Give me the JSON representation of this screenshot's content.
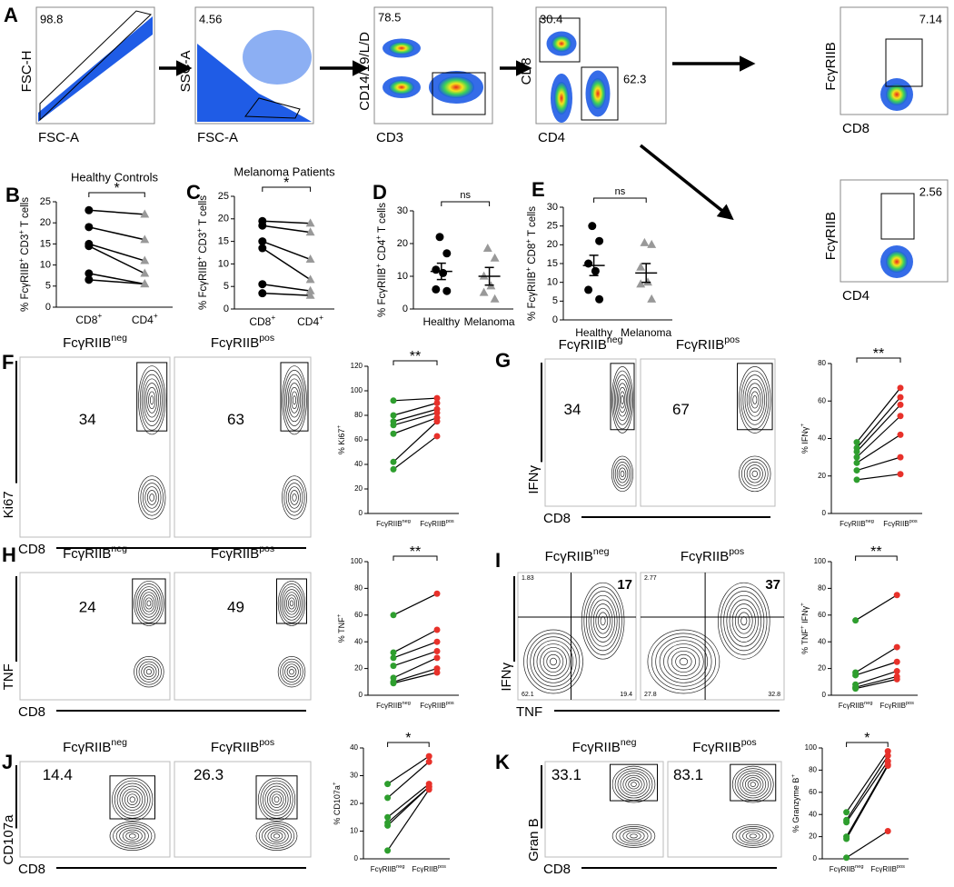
{
  "row_a": {
    "letter": "A",
    "plots": [
      {
        "x_label": "FSC-A",
        "y_label": "FSC-H",
        "gates": [
          "98.8"
        ]
      },
      {
        "x_label": "FSC-A",
        "y_label": "SSC-A",
        "gates": [
          "4.56"
        ]
      },
      {
        "x_label": "CD3",
        "y_label": "CD14/19/L/D",
        "gates": [
          "78.5"
        ]
      },
      {
        "x_label": "CD4",
        "y_label": "CD8",
        "gates": [
          "30.4",
          "62.3"
        ]
      },
      {
        "x_label": "CD8",
        "y_label": "FcγRIIB",
        "gates": [
          "7.14"
        ]
      },
      {
        "x_label": "CD4",
        "y_label": "FcγRIIB",
        "gates": [
          "2.56"
        ]
      }
    ]
  },
  "stain_panels": [
    {
      "letter": "F",
      "y_label": "Ki67",
      "x_label": "CD8",
      "headers": [
        {
          "base": "FcγRIIB",
          "sup": "neg"
        },
        {
          "base": "FcγRIIB",
          "sup": "pos"
        }
      ],
      "gates": [
        [
          "34"
        ],
        [
          "63"
        ]
      ]
    },
    {
      "letter": "G",
      "y_label": "IFNγ",
      "x_label": "CD8",
      "headers": [
        {
          "base": "FcγRIIB",
          "sup": "neg"
        },
        {
          "base": "FcγRIIB",
          "sup": "pos"
        }
      ],
      "gates": [
        [
          "34"
        ],
        [
          "67"
        ]
      ]
    },
    {
      "letter": "H",
      "y_label": "TNF",
      "x_label": "CD8",
      "headers": [
        {
          "base": "FcγRIIB",
          "sup": "neg"
        },
        {
          "base": "FcγRIIB",
          "sup": "pos"
        }
      ],
      "gates": [
        [
          "24"
        ],
        [
          "49"
        ]
      ]
    },
    {
      "letter": "I",
      "y_label": "IFNγ",
      "x_label": "TNF",
      "headers": [
        {
          "base": "FcγRIIB",
          "sup": "neg"
        },
        {
          "base": "FcγRIIB",
          "sup": "pos"
        }
      ],
      "gates": [
        [
          "1.83",
          "17",
          "62.1",
          "19.4"
        ],
        [
          "2.77",
          "37",
          "27.8",
          "32.8"
        ]
      ]
    },
    {
      "letter": "J",
      "y_label": "CD107a",
      "x_label": "CD8",
      "headers": [
        {
          "base": "FcγRIIB",
          "sup": "neg"
        },
        {
          "base": "FcγRIIB",
          "sup": "pos"
        }
      ],
      "gates": [
        [
          "14.4"
        ],
        [
          "26.3"
        ]
      ]
    },
    {
      "letter": "K",
      "y_label": "Gran B",
      "x_label": "CD8",
      "headers": [
        {
          "base": "FcγRIIB",
          "sup": "neg"
        },
        {
          "base": "FcγRIIB",
          "sup": "pos"
        }
      ],
      "gates": [
        [
          "33.1"
        ],
        [
          "83.1"
        ]
      ]
    }
  ],
  "charts": [
    {
      "letter": "B",
      "type": "paired",
      "title": "Healthy Controls",
      "y_label": [
        "% FcγRIIB",
        {
          "sup": "+"
        },
        " CD3",
        {
          "sup": "+"
        },
        " T cells"
      ],
      "categories": [
        {
          "base": "CD8",
          "sup": "+"
        },
        {
          "base": "CD4",
          "sup": "+"
        }
      ],
      "ylim": [
        0,
        25
      ],
      "yticks": [
        0,
        5,
        10,
        15,
        20,
        25
      ],
      "significance": "*",
      "series": [
        {
          "color": "#000000",
          "marker": "circle",
          "values": [
            23,
            19,
            15,
            14.5,
            8,
            6.5
          ]
        },
        {
          "color": "#999999",
          "marker": "triangle",
          "values": [
            22,
            16,
            11,
            8,
            5.5,
            5.5
          ]
        }
      ]
    },
    {
      "letter": "C",
      "type": "paired",
      "title": "Melanoma Patients",
      "y_label": [
        "% FcγRIIB",
        {
          "sup": "+"
        },
        " CD3",
        {
          "sup": "+"
        },
        " T cells"
      ],
      "categories": [
        {
          "base": "CD8",
          "sup": "+"
        },
        {
          "base": "CD4",
          "sup": "+"
        }
      ],
      "ylim": [
        0,
        25
      ],
      "yticks": [
        0,
        5,
        10,
        15,
        20,
        25
      ],
      "significance": "*",
      "series": [
        {
          "color": "#000000",
          "marker": "circle",
          "values": [
            19.5,
            18.5,
            15,
            13.5,
            5.5,
            3.5
          ]
        },
        {
          "color": "#999999",
          "marker": "triangle",
          "values": [
            19,
            17,
            11,
            6.5,
            4,
            3
          ]
        }
      ]
    },
    {
      "letter": "D",
      "type": "dot",
      "y_label": [
        "% FcγRIIB",
        {
          "sup": "+"
        },
        " CD4",
        {
          "sup": "+"
        },
        " T cells"
      ],
      "categories": [
        "Healthy",
        "Melanoma"
      ],
      "ylim": [
        0,
        30
      ],
      "yticks": [
        0,
        10,
        20,
        30
      ],
      "significance": "ns",
      "series": [
        {
          "color": "#000000",
          "marker": "circle",
          "values": [
            22,
            17,
            12,
            11,
            6,
            5.5
          ]
        },
        {
          "color": "#999999",
          "marker": "triangle",
          "values": [
            18.5,
            15.5,
            10,
            7,
            5,
            3
          ]
        }
      ],
      "mean": [
        11.5,
        10
      ],
      "sem": [
        2.5,
        2.7
      ]
    },
    {
      "letter": "E",
      "type": "dot",
      "y_label": [
        "% FcγRIIB",
        {
          "sup": "+"
        },
        " CD8",
        {
          "sup": "+"
        },
        " T cells"
      ],
      "categories": [
        "Healthy",
        "Melanoma"
      ],
      "ylim": [
        0,
        30
      ],
      "yticks": [
        0,
        5,
        10,
        15,
        20,
        25,
        30
      ],
      "significance": "ns",
      "series": [
        {
          "color": "#000000",
          "marker": "circle",
          "values": [
            25,
            21,
            15,
            13,
            8,
            5.5
          ]
        },
        {
          "color": "#999999",
          "marker": "triangle",
          "values": [
            20.5,
            20,
            14,
            10,
            9.5,
            5.5
          ]
        }
      ],
      "mean": [
        14.5,
        12.5
      ],
      "sem": [
        2.7,
        2.5
      ]
    },
    {
      "type": "paired",
      "y_label": [
        "% Ki67",
        {
          "sup": "+"
        }
      ],
      "categories": [
        {
          "base": "FcγRIIB",
          "sup": "neg"
        },
        {
          "base": "FcγRIIB",
          "sup": "pos"
        }
      ],
      "ylim": [
        0,
        120
      ],
      "yticks": [
        0,
        20,
        40,
        60,
        80,
        100,
        120
      ],
      "significance": "**",
      "series": [
        {
          "color": "#2e9e2e",
          "marker": "circle",
          "values": [
            92,
            80,
            75,
            72,
            65,
            42,
            36
          ]
        },
        {
          "color": "#e8312a",
          "marker": "circle",
          "values": [
            94,
            90,
            85,
            82,
            78,
            75,
            63
          ]
        }
      ]
    },
    {
      "type": "paired",
      "y_label": [
        "% IFNγ",
        {
          "sup": "+"
        }
      ],
      "categories": [
        {
          "base": "FcγRIIB",
          "sup": "neg"
        },
        {
          "base": "FcγRIIB",
          "sup": "pos"
        }
      ],
      "ylim": [
        0,
        80
      ],
      "yticks": [
        0,
        20,
        40,
        60,
        80
      ],
      "significance": "**",
      "series": [
        {
          "color": "#2e9e2e",
          "marker": "circle",
          "values": [
            38,
            35,
            33,
            30,
            27,
            23,
            18
          ]
        },
        {
          "color": "#e8312a",
          "marker": "circle",
          "values": [
            67,
            62,
            58,
            52,
            42,
            30,
            21
          ]
        }
      ]
    },
    {
      "type": "paired",
      "y_label": [
        "% TNF",
        {
          "sup": "+"
        }
      ],
      "categories": [
        {
          "base": "FcγRIIB",
          "sup": "neg"
        },
        {
          "base": "FcγRIIB",
          "sup": "pos"
        }
      ],
      "ylim": [
        0,
        100
      ],
      "yticks": [
        0,
        20,
        40,
        60,
        80,
        100
      ],
      "significance": "**",
      "series": [
        {
          "color": "#2e9e2e",
          "marker": "circle",
          "values": [
            60,
            32,
            28,
            22,
            13,
            10,
            9
          ]
        },
        {
          "color": "#e8312a",
          "marker": "circle",
          "values": [
            76,
            49,
            40,
            33,
            28,
            20,
            17
          ]
        }
      ]
    },
    {
      "type": "paired",
      "y_label": [
        "% TNF",
        {
          "sup": "+"
        },
        " IFNγ",
        {
          "sup": "+"
        }
      ],
      "categories": [
        {
          "base": "FcγRIIB",
          "sup": "neg"
        },
        {
          "base": "FcγRIIB",
          "sup": "pos"
        }
      ],
      "ylim": [
        0,
        100
      ],
      "yticks": [
        0,
        20,
        40,
        60,
        80,
        100
      ],
      "significance": "**",
      "series": [
        {
          "color": "#2e9e2e",
          "marker": "circle",
          "values": [
            56,
            17,
            15,
            8,
            6,
            5
          ]
        },
        {
          "color": "#e8312a",
          "marker": "circle",
          "values": [
            75,
            36,
            25,
            18,
            14,
            12
          ]
        }
      ]
    },
    {
      "type": "paired",
      "y_label": [
        "% CD107a",
        {
          "sup": "+"
        }
      ],
      "categories": [
        {
          "base": "FcγRIIB",
          "sup": "neg"
        },
        {
          "base": "FcγRIIB",
          "sup": "pos"
        }
      ],
      "ylim": [
        0,
        40
      ],
      "yticks": [
        0,
        10,
        20,
        30,
        40
      ],
      "significance": "*",
      "series": [
        {
          "color": "#2e9e2e",
          "marker": "circle",
          "values": [
            27,
            22,
            15,
            13,
            12,
            3
          ]
        },
        {
          "color": "#e8312a",
          "marker": "circle",
          "values": [
            37,
            35,
            27,
            26,
            26,
            25
          ]
        }
      ]
    },
    {
      "type": "paired",
      "y_label": [
        "% Granzyme B",
        {
          "sup": "+"
        }
      ],
      "categories": [
        {
          "base": "FcγRIIB",
          "sup": "neg"
        },
        {
          "base": "FcγRIIB",
          "sup": "pos"
        }
      ],
      "ylim": [
        0,
        100
      ],
      "yticks": [
        0,
        20,
        40,
        60,
        80,
        100
      ],
      "significance": "*",
      "series": [
        {
          "color": "#2e9e2e",
          "marker": "circle",
          "values": [
            42,
            35,
            33,
            20,
            18,
            1
          ]
        },
        {
          "color": "#e8312a",
          "marker": "circle",
          "values": [
            97,
            93,
            88,
            85,
            84,
            25
          ]
        }
      ]
    }
  ]
}
